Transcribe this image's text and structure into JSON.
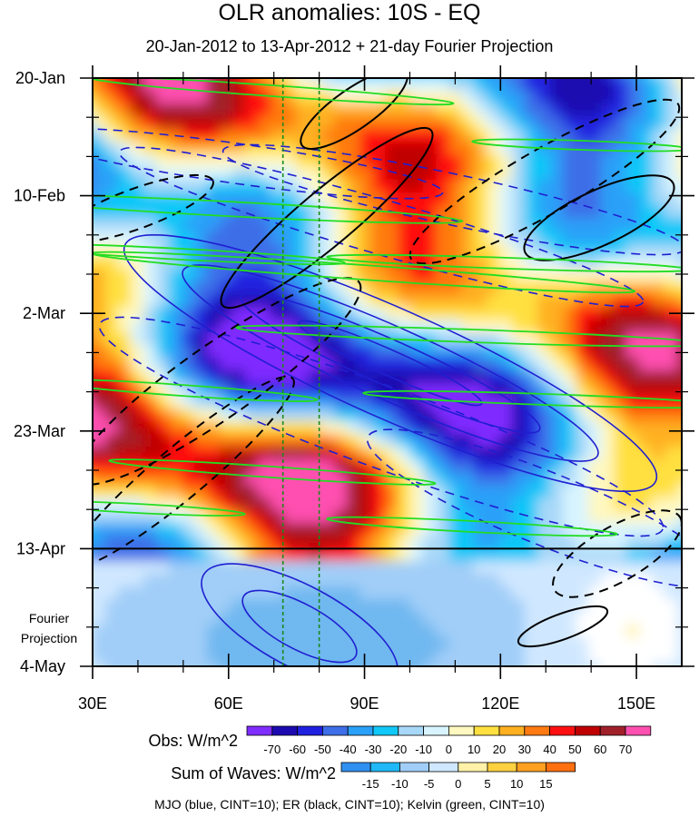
{
  "title": "OLR anomalies: 10S - EQ",
  "subtitle": "20-Jan-2012 to 13-Apr-2012 + 21-day Fourier Projection",
  "fourier_label": "Fourier\nProjection",
  "obs_label": "Obs: W/m^2",
  "waves_label": "Sum of Waves: W/m^2",
  "caption": "MJO (blue, CINT=10); ER (black, CINT=10); Kelvin (green, CINT=10)",
  "colors": {
    "mjo": "#1f1fd0",
    "er": "#000000",
    "kelvin": "#22dd22",
    "obs_scale": [
      "#7f2cff",
      "#1c0ab0",
      "#2020e0",
      "#3e6ee8",
      "#2aa0f8",
      "#10c8f8",
      "#a8d8f8",
      "#d8f4ff",
      "#fff8c0",
      "#ffe040",
      "#ffb020",
      "#ff7a10",
      "#ff1010",
      "#c00000",
      "#a0202a",
      "#ff50b0"
    ],
    "wave_scale": [
      "#3090f0",
      "#20b8f8",
      "#a0cef8",
      "#d0e8ff",
      "#ffffff",
      "#fff2a8",
      "#ffd040",
      "#ffa020",
      "#ff7010"
    ]
  },
  "chart_data": {
    "type": "heatmap",
    "title": "OLR anomalies: 10S - EQ",
    "subtitle": "20-Jan-2012 to 13-Apr-2012 + 21-day Fourier Projection",
    "x_axis": {
      "ticks": [
        "30E",
        "60E",
        "90E",
        "120E",
        "150E"
      ],
      "range": [
        30,
        160
      ]
    },
    "y_axis": {
      "ticks": [
        "20-Jan",
        "10-Feb",
        "2-Mar",
        "23-Mar",
        "13-Apr",
        "4-May"
      ],
      "range": [
        "2012-01-20",
        "2012-05-04"
      ],
      "inverted": true
    },
    "obs_levels": [
      -70,
      -60,
      -50,
      -40,
      -30,
      -20,
      -10,
      0,
      10,
      20,
      30,
      40,
      50,
      60,
      70
    ],
    "wave_levels": [
      -15,
      -10,
      -5,
      0,
      5,
      10,
      15
    ],
    "reference_lines": [
      {
        "type": "vertical",
        "x": 72,
        "style": "dotted",
        "color": "green"
      },
      {
        "type": "vertical",
        "x": 80,
        "style": "dotted",
        "color": "green"
      },
      {
        "type": "horizontal",
        "y": "2012-04-13",
        "style": "solid",
        "color": "black"
      }
    ],
    "contours": [
      {
        "name": "MJO",
        "color": "blue",
        "cint": 10
      },
      {
        "name": "ER",
        "color": "black",
        "cint": 10
      },
      {
        "name": "Kelvin",
        "color": "green",
        "cint": 10
      }
    ]
  }
}
